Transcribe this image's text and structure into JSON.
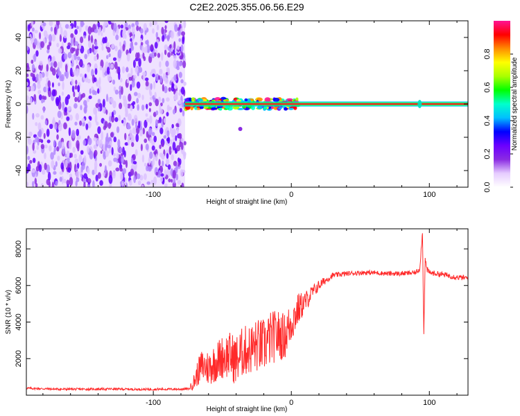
{
  "figure": {
    "title": "C2E2.2025.355.06.56.E29"
  },
  "chart_data": [
    {
      "type": "heatmap",
      "title": "",
      "xlabel": "Height of straight line (km)",
      "ylabel": "Frequency (Hz)",
      "xlim": [
        -192,
        128
      ],
      "ylim": [
        -50,
        50
      ],
      "xticks": [
        -100,
        0,
        100
      ],
      "yticks": [
        -40,
        -20,
        0,
        20,
        40
      ],
      "noise_region_km": [
        -192,
        -77
      ],
      "carrier_frequency_hz": 0,
      "scintillation_region_km": [
        -77,
        5
      ],
      "stray_feature": {
        "x_km": -37,
        "y_hz": -15
      },
      "spike_feature_x_km": 93,
      "colorbar": {
        "label": "Normalized spectral amplitude",
        "range": [
          0,
          1
        ],
        "ticks": [
          0.0,
          0.2,
          0.4,
          0.6,
          0.8
        ],
        "tick_labels": [
          "0.0",
          "0.2",
          "0.4",
          "0.6",
          "0.8"
        ],
        "colors": [
          "#ffffff",
          "#e6ccff",
          "#8a2be2",
          "#6b00ff",
          "#0000ff",
          "#00bfff",
          "#00ffcc",
          "#00ff00",
          "#aaff00",
          "#ffff00",
          "#ff8c00",
          "#ff0000",
          "#ff1493"
        ]
      }
    },
    {
      "type": "line",
      "title": "",
      "xlabel": "Height of straight line (km)",
      "ylabel": "SNR (10 * v/v)",
      "xlim": [
        -192,
        128
      ],
      "ylim": [
        0,
        9100
      ],
      "xticks": [
        -100,
        0,
        100
      ],
      "yticks": [
        2000,
        4000,
        6000,
        8000
      ],
      "color": "#ff2a2a",
      "series": [
        {
          "name": "SNR",
          "x": [
            -192,
            -170,
            -150,
            -130,
            -110,
            -90,
            -80,
            -74,
            -70,
            -68,
            -65,
            -60,
            -55,
            -50,
            -45,
            -40,
            -35,
            -30,
            -25,
            -20,
            -15,
            -10,
            -5,
            0,
            5,
            10,
            15,
            20,
            25,
            30,
            40,
            50,
            60,
            70,
            80,
            90,
            93,
            95,
            96,
            97,
            98,
            100,
            110,
            120,
            128
          ],
          "y": [
            380,
            330,
            330,
            340,
            320,
            330,
            330,
            350,
            800,
            1200,
            1600,
            1500,
            1800,
            2100,
            2200,
            1900,
            2400,
            2500,
            2700,
            2700,
            3100,
            3300,
            3200,
            4000,
            4700,
            5100,
            5600,
            6000,
            6300,
            6550,
            6650,
            6700,
            6700,
            6650,
            6650,
            6700,
            6900,
            8900,
            3400,
            7500,
            6900,
            6700,
            6600,
            6450,
            6400
          ],
          "noise_amplitude": [
            60,
            60,
            60,
            60,
            60,
            60,
            60,
            60,
            500,
            700,
            900,
            1000,
            1100,
            1200,
            1300,
            1400,
            1400,
            1400,
            1500,
            1500,
            1500,
            1400,
            1300,
            1200,
            900,
            600,
            400,
            300,
            200,
            150,
            130,
            130,
            130,
            130,
            130,
            130,
            150,
            150,
            150,
            200,
            180,
            150,
            150,
            150,
            150
          ]
        }
      ]
    }
  ]
}
